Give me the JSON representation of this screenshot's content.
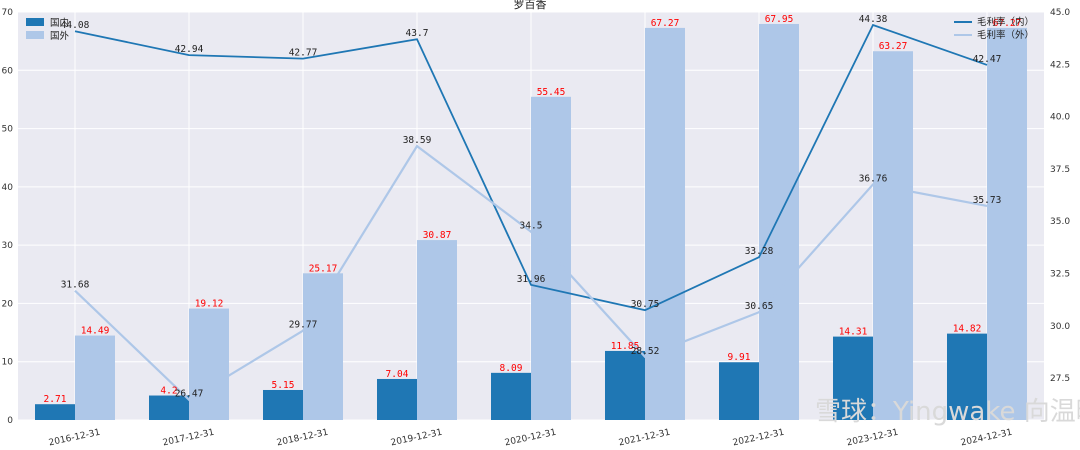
{
  "chart_data": {
    "type": "bar",
    "title": "罗百香",
    "categories": [
      "2016-12-31",
      "2017-12-31",
      "2018-12-31",
      "2019-12-31",
      "2020-12-31",
      "2021-12-31",
      "2022-12-31",
      "2023-12-31",
      "2024-12-31"
    ],
    "series": [
      {
        "name": "国内",
        "type": "bar",
        "axis": "left",
        "color": "#1f77b4",
        "values": [
          2.71,
          4.2,
          5.15,
          7.04,
          8.09,
          11.85,
          9.91,
          14.31,
          14.82
        ]
      },
      {
        "name": "国外",
        "type": "bar",
        "axis": "left",
        "color": "#aec7e8",
        "values": [
          14.49,
          19.12,
          25.17,
          30.87,
          55.45,
          67.27,
          67.95,
          63.27,
          67.27
        ]
      },
      {
        "name": "毛利率（内）",
        "type": "line",
        "axis": "right",
        "color": "#1f77b4",
        "values": [
          44.08,
          42.94,
          42.77,
          43.7,
          31.96,
          30.75,
          33.28,
          44.38,
          42.47
        ]
      },
      {
        "name": "毛利率（外）",
        "type": "line",
        "axis": "right",
        "color": "#aec7e8",
        "values": [
          31.68,
          26.47,
          29.77,
          38.59,
          34.5,
          28.52,
          30.65,
          36.76,
          35.73
        ]
      }
    ],
    "bar_label_color": "#ff0000",
    "ylim": [
      0,
      70
    ],
    "yticks": [
      0,
      10,
      20,
      30,
      40,
      50,
      60,
      70
    ],
    "y2lim": [
      25.5,
      45.0
    ],
    "y2ticks": [
      "27.5",
      "30.0",
      "32.5",
      "35.0",
      "37.5",
      "40.0",
      "42.5",
      "45.0"
    ],
    "grid": true,
    "legend_left_position": "top-left",
    "legend_right_position": "top-right"
  },
  "watermark": "雪球：Yingwake 向温暖"
}
